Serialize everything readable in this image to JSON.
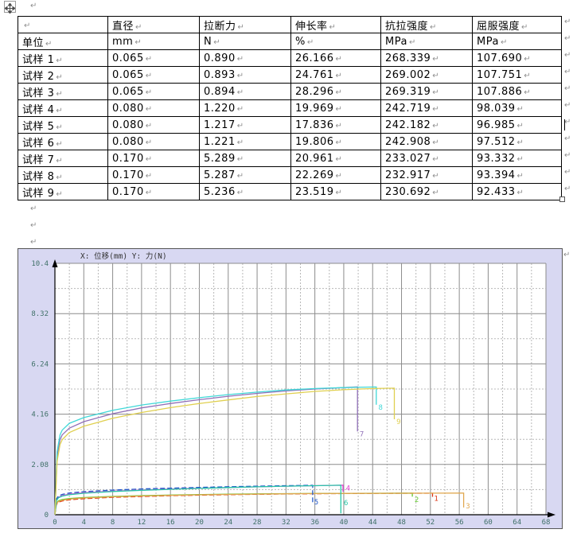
{
  "marks": {
    "pilcrow": "↵"
  },
  "icons": {
    "move_handle": "four-direction-arrows",
    "resize_handle": "small-square",
    "text_cursor": "i-beam-caret"
  },
  "table": {
    "rows": [
      [
        "",
        "直径",
        "拉断力",
        "伸长率",
        "抗拉强度",
        "屈服强度"
      ],
      [
        "单位",
        "mm",
        "N",
        "%",
        "MPa",
        "MPa"
      ],
      [
        "试样 1",
        "0.065",
        "0.890",
        "26.166",
        "268.339",
        "107.690"
      ],
      [
        "试样 2",
        "0.065",
        "0.893",
        "24.761",
        "269.002",
        "107.751"
      ],
      [
        "试样 3",
        "0.065",
        "0.894",
        "28.296",
        "269.319",
        "107.886"
      ],
      [
        "试样 4",
        "0.080",
        "1.220",
        "19.969",
        "242.719",
        "98.039"
      ],
      [
        "试样 5",
        "0.080",
        "1.217",
        "17.836",
        "242.182",
        "96.985"
      ],
      [
        "试样 6",
        "0.080",
        "1.221",
        "19.806",
        "242.908",
        "97.512"
      ],
      [
        "试样 7",
        "0.170",
        "5.289",
        "20.961",
        "233.027",
        "93.332"
      ],
      [
        "试样 8",
        "0.170",
        "5.287",
        "22.269",
        "232.917",
        "93.394"
      ],
      [
        "试样 9",
        "0.170",
        "5.236",
        "23.519",
        "230.692",
        "92.433"
      ]
    ]
  },
  "chart_data": {
    "type": "line",
    "title": "X: 位移(mm)  Y: 力(N)",
    "xlabel": "位移(mm)",
    "ylabel": "力(N)",
    "xlim": [
      0,
      68
    ],
    "ylim": [
      0,
      10.4
    ],
    "x_tick_step": 4,
    "y_ticks": [
      "0",
      "2.08",
      "4.16",
      "6.24",
      "8.32",
      "10.4"
    ],
    "grid": true,
    "legend_position": "curve-number-labels-at-break-points",
    "colors": {
      "frame_bg": "#d8d8f2",
      "plot_bg": "#ffffff",
      "grid_major": "#8c8c8c",
      "grid_minor": "#b8b8b8",
      "axis": "#000000",
      "tick_text": "#3f7068",
      "title_text": "#333333"
    },
    "series": [
      {
        "name": "试样 1",
        "label": "1",
        "color": "#dd3311",
        "dash": [
          6,
          3
        ],
        "label_pos": [
          52.5,
          0.57
        ],
        "points": [
          [
            0,
            0
          ],
          [
            0.2,
            0.42
          ],
          [
            0.5,
            0.52
          ],
          [
            1,
            0.57
          ],
          [
            2,
            0.62
          ],
          [
            4,
            0.66
          ],
          [
            8,
            0.72
          ],
          [
            12,
            0.755
          ],
          [
            16,
            0.785
          ],
          [
            20,
            0.808
          ],
          [
            24,
            0.828
          ],
          [
            28,
            0.845
          ],
          [
            32,
            0.858
          ],
          [
            36,
            0.868
          ],
          [
            40,
            0.877
          ],
          [
            44,
            0.883
          ],
          [
            48,
            0.887
          ],
          [
            52.3,
            0.89
          ],
          [
            52.3,
            0.72
          ]
        ]
      },
      {
        "name": "试样 2",
        "label": "2",
        "color": "#66c832",
        "dash": null,
        "label_pos": [
          49.8,
          0.52
        ],
        "points": [
          [
            0,
            0
          ],
          [
            0.2,
            0.48
          ],
          [
            0.5,
            0.58
          ],
          [
            1,
            0.63
          ],
          [
            2,
            0.67
          ],
          [
            4,
            0.71
          ],
          [
            8,
            0.757
          ],
          [
            12,
            0.79
          ],
          [
            16,
            0.813
          ],
          [
            20,
            0.832
          ],
          [
            24,
            0.848
          ],
          [
            28,
            0.861
          ],
          [
            32,
            0.871
          ],
          [
            36,
            0.879
          ],
          [
            40,
            0.885
          ],
          [
            44,
            0.889
          ],
          [
            49.5,
            0.893
          ],
          [
            49.5,
            0.75
          ]
        ]
      },
      {
        "name": "试样 3",
        "label": "3",
        "color": "#e0a850",
        "dash": null,
        "label_pos": [
          56.9,
          0.27
        ],
        "points": [
          [
            0,
            0
          ],
          [
            0.2,
            0.45
          ],
          [
            0.5,
            0.55
          ],
          [
            1,
            0.6
          ],
          [
            2,
            0.645
          ],
          [
            4,
            0.69
          ],
          [
            8,
            0.74
          ],
          [
            12,
            0.773
          ],
          [
            16,
            0.8
          ],
          [
            20,
            0.822
          ],
          [
            24,
            0.84
          ],
          [
            28,
            0.854
          ],
          [
            32,
            0.865
          ],
          [
            36,
            0.874
          ],
          [
            40,
            0.881
          ],
          [
            44,
            0.886
          ],
          [
            48,
            0.89
          ],
          [
            52,
            0.892
          ],
          [
            56.6,
            0.894
          ],
          [
            56.6,
            0.3
          ]
        ]
      },
      {
        "name": "试样 4",
        "label": "4",
        "color": "#e040d0",
        "dash": null,
        "label_pos": [
          40.3,
          1.0
        ],
        "points": [
          [
            0,
            0
          ],
          [
            0.2,
            0.6
          ],
          [
            0.5,
            0.72
          ],
          [
            1,
            0.79
          ],
          [
            2,
            0.85
          ],
          [
            4,
            0.91
          ],
          [
            8,
            0.975
          ],
          [
            12,
            1.02
          ],
          [
            16,
            1.06
          ],
          [
            20,
            1.095
          ],
          [
            24,
            1.125
          ],
          [
            28,
            1.155
          ],
          [
            32,
            1.18
          ],
          [
            36,
            1.2
          ],
          [
            39.9,
            1.22
          ],
          [
            39.9,
            0.95
          ]
        ]
      },
      {
        "name": "试样 5",
        "label": "5",
        "color": "#2458c8",
        "dash": [
          6,
          3
        ],
        "label_pos": [
          35.9,
          0.42
        ],
        "points": [
          [
            0,
            0
          ],
          [
            0.2,
            0.65
          ],
          [
            0.5,
            0.78
          ],
          [
            1,
            0.84
          ],
          [
            2,
            0.9
          ],
          [
            4,
            0.955
          ],
          [
            8,
            1.02
          ],
          [
            12,
            1.065
          ],
          [
            16,
            1.1
          ],
          [
            20,
            1.13
          ],
          [
            24,
            1.158
          ],
          [
            28,
            1.182
          ],
          [
            32,
            1.2
          ],
          [
            35.7,
            1.217
          ],
          [
            35.7,
            0.5
          ]
        ]
      },
      {
        "name": "试样 6",
        "label": "6",
        "color": "#28c8a8",
        "dash": null,
        "label_pos": [
          40.0,
          0.4
        ],
        "points": [
          [
            0,
            0
          ],
          [
            0.2,
            0.58
          ],
          [
            0.5,
            0.7
          ],
          [
            1,
            0.77
          ],
          [
            2,
            0.83
          ],
          [
            4,
            0.89
          ],
          [
            8,
            0.96
          ],
          [
            12,
            1.01
          ],
          [
            16,
            1.05
          ],
          [
            20,
            1.09
          ],
          [
            24,
            1.125
          ],
          [
            28,
            1.155
          ],
          [
            32,
            1.18
          ],
          [
            36,
            1.202
          ],
          [
            39.6,
            1.221
          ],
          [
            39.6,
            0.06
          ]
        ]
      },
      {
        "name": "试样 7",
        "label": "7",
        "color": "#9070b8",
        "dash": null,
        "label_pos": [
          42.2,
          3.25
        ],
        "points": [
          [
            0,
            0
          ],
          [
            0.3,
            2.4
          ],
          [
            0.7,
            3.1
          ],
          [
            1,
            3.3
          ],
          [
            2,
            3.58
          ],
          [
            4,
            3.85
          ],
          [
            8,
            4.18
          ],
          [
            12,
            4.42
          ],
          [
            16,
            4.6
          ],
          [
            20,
            4.76
          ],
          [
            24,
            4.9
          ],
          [
            28,
            5.02
          ],
          [
            32,
            5.12
          ],
          [
            36,
            5.2
          ],
          [
            40,
            5.26
          ],
          [
            41.9,
            5.289
          ],
          [
            41.9,
            3.45
          ]
        ]
      },
      {
        "name": "试样 8",
        "label": "8",
        "color": "#40d8d8",
        "dash": null,
        "label_pos": [
          44.8,
          4.35
        ],
        "points": [
          [
            0,
            0
          ],
          [
            0.3,
            2.6
          ],
          [
            0.7,
            3.3
          ],
          [
            1,
            3.5
          ],
          [
            2,
            3.78
          ],
          [
            4,
            4.02
          ],
          [
            8,
            4.32
          ],
          [
            12,
            4.54
          ],
          [
            16,
            4.7
          ],
          [
            20,
            4.84
          ],
          [
            24,
            4.97
          ],
          [
            28,
            5.07
          ],
          [
            32,
            5.16
          ],
          [
            36,
            5.22
          ],
          [
            40,
            5.26
          ],
          [
            43,
            5.28
          ],
          [
            44.5,
            5.287
          ],
          [
            44.5,
            4.55
          ]
        ]
      },
      {
        "name": "试样 9",
        "label": "9",
        "color": "#e0d050",
        "dash": null,
        "label_pos": [
          47.3,
          3.75
        ],
        "points": [
          [
            0,
            0
          ],
          [
            0.3,
            2.2
          ],
          [
            0.7,
            2.9
          ],
          [
            1,
            3.1
          ],
          [
            2,
            3.4
          ],
          [
            4,
            3.66
          ],
          [
            8,
            3.99
          ],
          [
            12,
            4.23
          ],
          [
            16,
            4.43
          ],
          [
            20,
            4.6
          ],
          [
            24,
            4.75
          ],
          [
            28,
            4.89
          ],
          [
            32,
            5.0
          ],
          [
            36,
            5.1
          ],
          [
            40,
            5.17
          ],
          [
            44,
            5.22
          ],
          [
            47,
            5.236
          ],
          [
            47,
            3.95
          ]
        ]
      }
    ]
  }
}
